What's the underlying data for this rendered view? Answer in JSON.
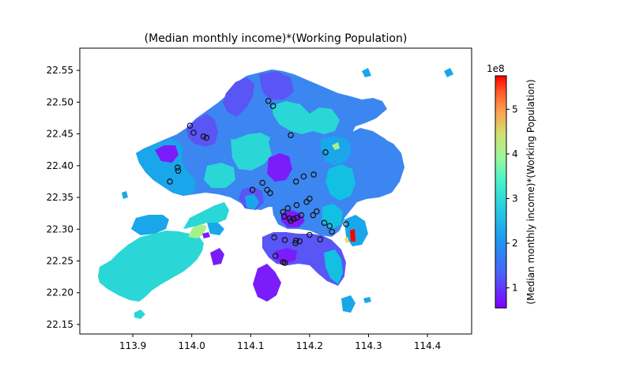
{
  "title": "(Median monthly income)*(Working Population)",
  "x_ticks": [
    "113.9",
    "114.0",
    "114.1",
    "114.2",
    "114.3",
    "114.4"
  ],
  "y_ticks": [
    "22.55",
    "22.50",
    "22.45",
    "22.40",
    "22.35",
    "22.30",
    "22.25",
    "22.20",
    "22.15"
  ],
  "colorbar": {
    "label": "(Median monthly income)*(Working Population)",
    "exponent": "1e8",
    "ticks": [
      "1",
      "2",
      "3",
      "4",
      "5"
    ]
  },
  "colors": {
    "deep_purple": "#7b1cfb",
    "blue_purple": "#5a55f5",
    "blue": "#3b86f0",
    "mid_blue": "#1aa6ea",
    "cyan_blue": "#12c1e2",
    "cyan": "#2ad6d6",
    "light_green": "#a6f08a",
    "yellow": "#f1d66b",
    "red": "#ff0000"
  },
  "markers": [
    [
      114.13,
      22.502
    ],
    [
      114.138,
      22.494
    ],
    [
      113.997,
      22.463
    ],
    [
      114.003,
      22.452
    ],
    [
      114.02,
      22.446
    ],
    [
      114.025,
      22.444
    ],
    [
      114.168,
      22.448
    ],
    [
      114.227,
      22.421
    ],
    [
      113.976,
      22.397
    ],
    [
      113.977,
      22.392
    ],
    [
      113.963,
      22.375
    ],
    [
      114.103,
      22.362
    ],
    [
      114.12,
      22.373
    ],
    [
      114.128,
      22.362
    ],
    [
      114.133,
      22.357
    ],
    [
      114.177,
      22.375
    ],
    [
      114.19,
      22.383
    ],
    [
      114.207,
      22.386
    ],
    [
      114.195,
      22.343
    ],
    [
      114.2,
      22.348
    ],
    [
      114.178,
      22.338
    ],
    [
      114.163,
      22.333
    ],
    [
      114.155,
      22.327
    ],
    [
      114.157,
      22.32
    ],
    [
      114.168,
      22.313
    ],
    [
      114.173,
      22.316
    ],
    [
      114.166,
      22.317
    ],
    [
      114.178,
      22.318
    ],
    [
      114.186,
      22.322
    ],
    [
      114.206,
      22.322
    ],
    [
      114.212,
      22.328
    ],
    [
      114.225,
      22.31
    ],
    [
      114.234,
      22.305
    ],
    [
      114.238,
      22.296
    ],
    [
      114.262,
      22.308
    ],
    [
      114.14,
      22.287
    ],
    [
      114.158,
      22.283
    ],
    [
      114.176,
      22.278
    ],
    [
      114.183,
      22.281
    ],
    [
      114.177,
      22.282
    ],
    [
      114.2,
      22.291
    ],
    [
      114.218,
      22.284
    ],
    [
      114.142,
      22.258
    ],
    [
      114.155,
      22.248
    ],
    [
      114.158,
      22.247
    ]
  ]
}
